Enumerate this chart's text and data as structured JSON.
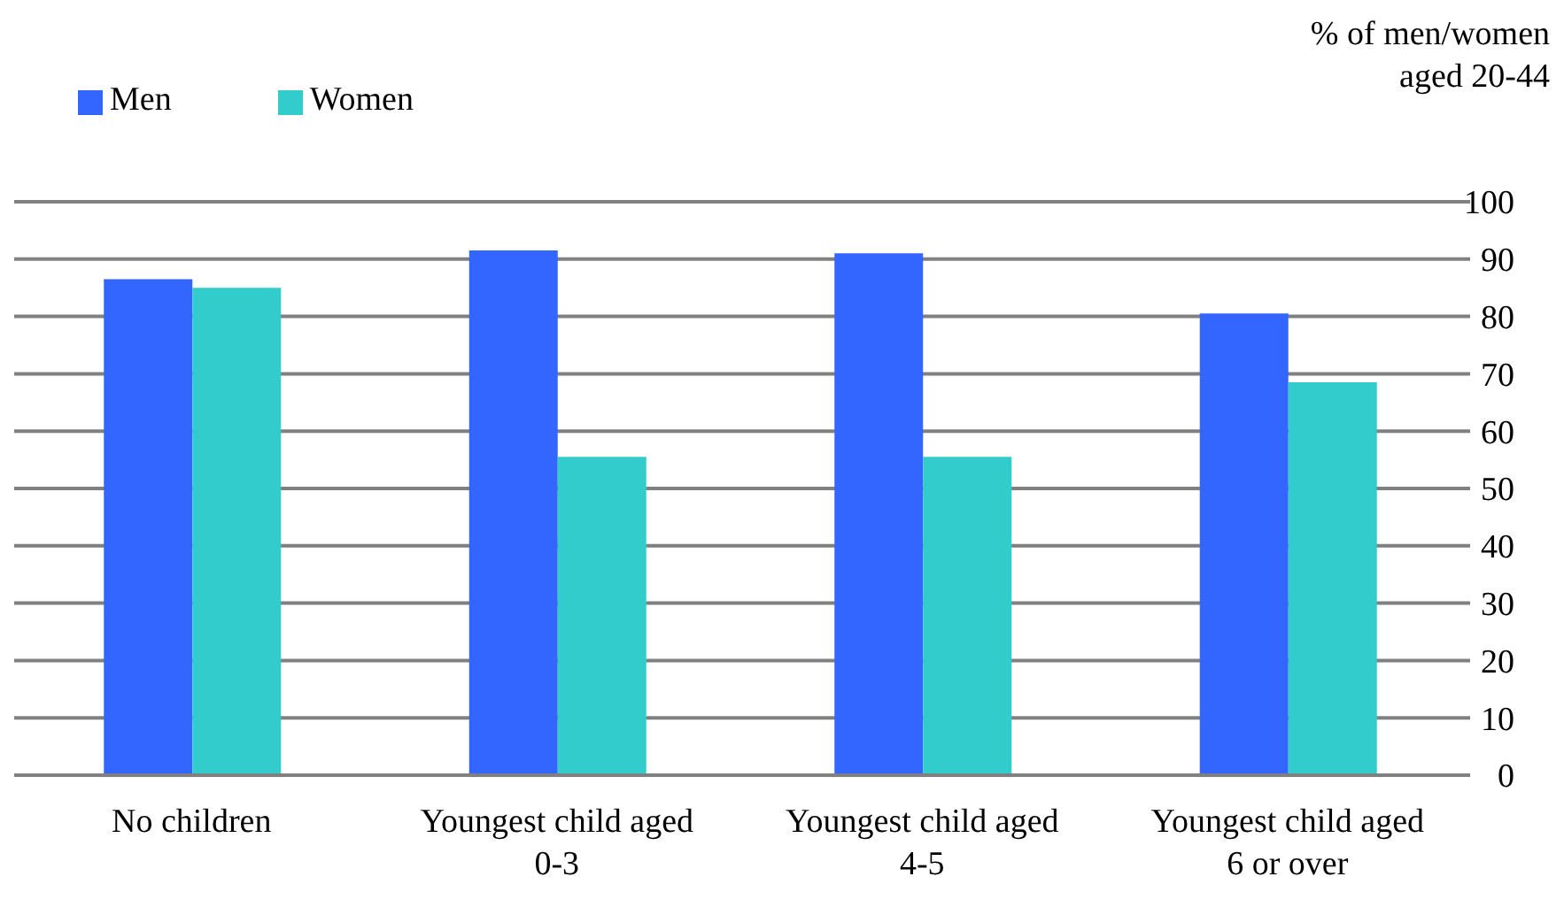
{
  "chart_data": {
    "type": "bar",
    "ylabel": "% of men/women aged 20-44",
    "categories": [
      "No children",
      "Youngest child aged 0-3",
      "Youngest child aged 4-5",
      "Youngest child aged 6 or over"
    ],
    "series": [
      {
        "name": "Men",
        "color": "#3366ff",
        "values": [
          86.5,
          91.5,
          91,
          80.5
        ]
      },
      {
        "name": "Women",
        "color": "#33cccc",
        "values": [
          85,
          55.5,
          55.5,
          68.5
        ]
      }
    ],
    "ylim": [
      0,
      100
    ],
    "yticks": [
      0,
      10,
      20,
      30,
      40,
      50,
      60,
      70,
      80,
      90,
      100
    ],
    "grid": "y",
    "legend": "top left"
  }
}
